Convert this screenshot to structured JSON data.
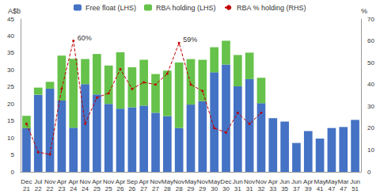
{
  "chart_data": {
    "type": "bar",
    "stacked": true,
    "legend": "top",
    "y_label": "A$b",
    "y2_label": "%",
    "categories": [
      "Dec 21",
      "Jul 22",
      "Nov 22",
      "Apr 23",
      "Apr 24",
      "Nov 24",
      "Apr 25",
      "Nov 25",
      "Apr 26",
      "Sep 26",
      "Apr 27",
      "Nov 27",
      "May 28",
      "Nov 28",
      "May 29",
      "Nov 29",
      "May 30",
      "Dec 30",
      "Jun 31",
      "Nov 31",
      "Nov 32",
      "Apr 33",
      "Jun 35",
      "Jun 37",
      "Apr 39",
      "May 41",
      "May 47",
      "Mar 47",
      "Jun 51"
    ],
    "series": [
      {
        "name": "Free float (LHS)",
        "type": "bar",
        "color": "#4472c4",
        "values": [
          12.8,
          22.7,
          24.5,
          21,
          13,
          25.8,
          22.8,
          20,
          18.6,
          19,
          19.5,
          17.4,
          16.4,
          12.9,
          19.8,
          20.8,
          29.3,
          31.6,
          25.2,
          27.3,
          20.2,
          15.8,
          14.8,
          8.5,
          12,
          9.8,
          12.9,
          13.2,
          15.3
        ]
      },
      {
        "name": "RBA holding (LHS)",
        "type": "bar",
        "color": "#66c24a",
        "values": [
          3.7,
          2.1,
          2,
          13.2,
          20.3,
          7.4,
          11.9,
          11.3,
          16.6,
          11.8,
          13.5,
          11.4,
          13.4,
          19.3,
          13.4,
          12.2,
          7.4,
          7,
          9.2,
          7.8,
          7.5,
          null,
          null,
          null,
          null,
          null,
          null,
          null,
          null
        ]
      },
      {
        "name": "RBA % holding (RHS)",
        "type": "line",
        "axis": "y2",
        "color": "#c00000",
        "line_style": "dashed",
        "marker": "circle",
        "values": [
          22,
          9,
          8,
          38,
          60,
          22,
          34,
          36,
          47,
          38,
          41,
          40,
          45,
          59,
          40,
          37,
          20,
          18,
          27,
          22,
          27,
          null,
          null,
          null,
          null,
          null,
          null,
          null,
          null
        ]
      }
    ],
    "annotations": [
      {
        "category": "Apr 24",
        "value": 60,
        "label": "60%"
      },
      {
        "category": "Nov 28",
        "value": 59,
        "label": "59%"
      }
    ],
    "ylim": [
      0,
      45
    ],
    "yticks": [
      0,
      5,
      10,
      15,
      20,
      25,
      30,
      35,
      40,
      45
    ],
    "y2lim": [
      0,
      70
    ],
    "y2ticks": [
      0,
      10,
      20,
      30,
      40,
      50,
      60,
      70
    ],
    "grid": false
  }
}
